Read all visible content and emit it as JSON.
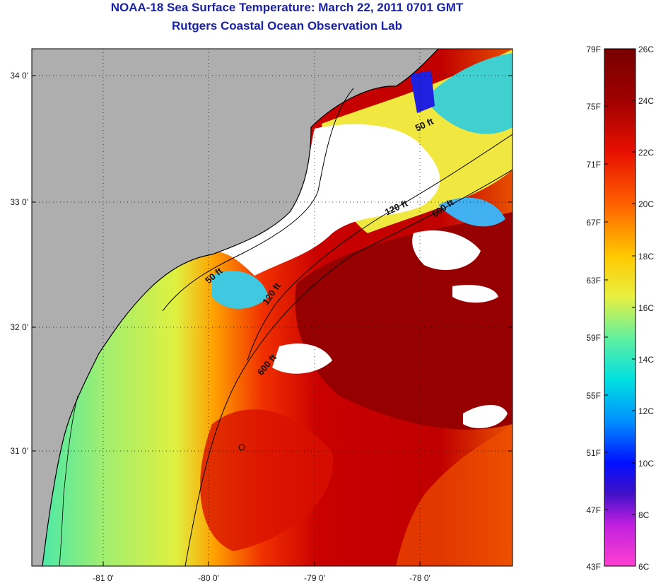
{
  "header": {
    "title": "NOAA-18 Sea Surface Temperature:  March 22, 2011 0701 GMT",
    "subtitle": "Rutgers Coastal Ocean Observation Lab"
  },
  "map": {
    "lon_ticks": [
      "-81 0'",
      "-80 0'",
      "-79 0'",
      "-78 0'"
    ],
    "lat_ticks": [
      "34 0'",
      "33 0'",
      "32 0'",
      "31 0'"
    ],
    "isobath_labels": [
      "50 ft",
      "120 ft",
      "600 ft",
      "50 ft",
      "120 ft",
      "600 ft"
    ]
  },
  "colorbar": {
    "fahrenheit_labels": [
      "79F",
      "75F",
      "71F",
      "67F",
      "63F",
      "59F",
      "55F",
      "51F",
      "47F",
      "43F"
    ],
    "celsius_labels": [
      "26C",
      "24C",
      "22C",
      "20C",
      "18C",
      "16C",
      "14C",
      "12C",
      "10C",
      "8C",
      "6C"
    ]
  },
  "colors": {
    "title": "#1a22a8",
    "land": "#aeaeae",
    "cloud": "#ffffff",
    "warm": "#a80000",
    "cool": "#00c8f0"
  }
}
